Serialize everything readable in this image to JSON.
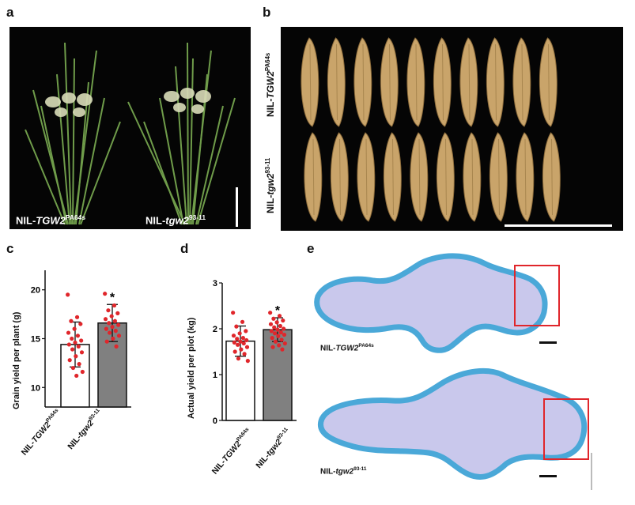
{
  "panels": {
    "a": "a",
    "b": "b",
    "c": "c",
    "d": "d",
    "e": "e"
  },
  "panel_a": {
    "left_label": {
      "prefix": "NIL-",
      "gene": "TGW2",
      "sup": "PA64s"
    },
    "right_label": {
      "prefix": "NIL-",
      "gene": "tgw2",
      "sup": "93-11"
    }
  },
  "panel_b": {
    "top_row_label": {
      "prefix": "NIL-",
      "gene": "TGW2",
      "sup": "PA64s"
    },
    "bottom_row_label": {
      "prefix": "NIL-",
      "gene": "tgw2",
      "sup": "93-11"
    },
    "grain_color": "#c9a46a",
    "grains_per_row": 10
  },
  "panel_e": {
    "top_label": {
      "prefix": "NIL-",
      "gene": "TGW2",
      "sup": "PA64s"
    },
    "bottom_label": {
      "prefix": "NIL-",
      "gene": "tgw2",
      "sup": "93-11"
    },
    "tissue_fill": "#c9c8ec",
    "tissue_edge": "#4aa8d8",
    "highlight_color": "#e0262b"
  },
  "chart_data": [
    {
      "type": "bar",
      "panel": "c",
      "ylabel": "Grain yield per plant (g)",
      "ylim": [
        8,
        22
      ],
      "yticks": [
        10,
        15,
        20
      ],
      "categories": [
        {
          "prefix": "NIL-",
          "gene": "TGW2",
          "sup": "PA64s"
        },
        {
          "prefix": "NIL-",
          "gene": "tgw2",
          "sup": "93-11"
        }
      ],
      "values": [
        14.4,
        16.6
      ],
      "errors": [
        2.3,
        1.9
      ],
      "bar_colors": [
        "#ffffff",
        "#808080"
      ],
      "significance": [
        "",
        "*"
      ],
      "points": [
        [
          19.5,
          17.2,
          16.8,
          16.5,
          16.0,
          15.6,
          15.3,
          15.0,
          14.8,
          14.6,
          14.4,
          14.2,
          13.9,
          13.6,
          13.2,
          12.8,
          12.4,
          12.0,
          11.6,
          11.2
        ],
        [
          19.6,
          18.4,
          17.9,
          17.6,
          17.3,
          17.0,
          16.8,
          16.6,
          16.4,
          16.2,
          16.0,
          15.8,
          15.6,
          15.3,
          15.0,
          14.7,
          14.2
        ]
      ],
      "point_color": "#e0262b"
    },
    {
      "type": "bar",
      "panel": "d",
      "ylabel": "Actual yield per plot (kg)",
      "ylim": [
        0,
        3
      ],
      "yticks": [
        0,
        1,
        2,
        3
      ],
      "categories": [
        {
          "prefix": "NIL-",
          "gene": "TGW2",
          "sup": "PA64s"
        },
        {
          "prefix": "NIL-",
          "gene": "tgw2",
          "sup": "93-11"
        }
      ],
      "values": [
        1.73,
        1.98
      ],
      "errors": [
        0.33,
        0.26
      ],
      "bar_colors": [
        "#ffffff",
        "#808080"
      ],
      "significance": [
        "",
        "*"
      ],
      "points": [
        [
          2.35,
          2.15,
          2.05,
          1.95,
          1.9,
          1.85,
          1.8,
          1.78,
          1.75,
          1.72,
          1.7,
          1.68,
          1.65,
          1.6,
          1.55,
          1.5,
          1.45,
          1.35,
          1.3
        ],
        [
          2.35,
          2.28,
          2.22,
          2.18,
          2.14,
          2.1,
          2.06,
          2.03,
          2.0,
          1.98,
          1.95,
          1.92,
          1.9,
          1.87,
          1.84,
          1.8,
          1.76,
          1.72,
          1.68,
          1.64,
          1.6,
          1.55
        ]
      ],
      "point_color": "#e0262b"
    }
  ]
}
